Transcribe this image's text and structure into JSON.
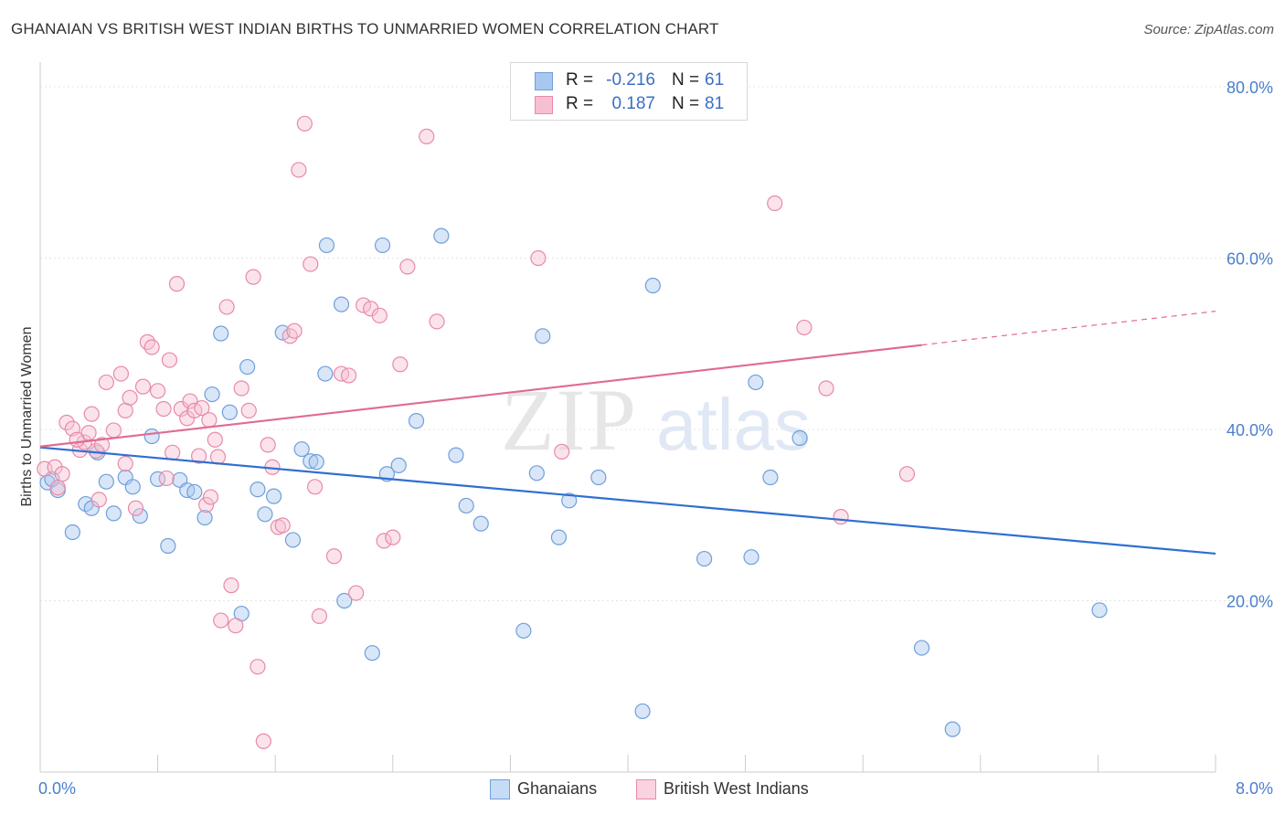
{
  "title": "GHANAIAN VS BRITISH WEST INDIAN BIRTHS TO UNMARRIED WOMEN CORRELATION CHART",
  "source": "Source: ZipAtlas.com",
  "watermark": {
    "zip": "ZIP",
    "atlas": "atlas"
  },
  "legend": {
    "rows": [
      {
        "r_label": "R =",
        "r_value": "-0.216",
        "n_label": "N =",
        "n_value": "61",
        "color": "#a9c8f0",
        "border": "#6f9fdc"
      },
      {
        "r_label": "R =",
        "r_value": "0.187",
        "n_label": "N =",
        "n_value": "81",
        "color": "#f7c0d2",
        "border": "#e88aa8"
      }
    ]
  },
  "bottom_legend": [
    {
      "label": "Ghanaians",
      "color": "#c6dbf6",
      "border": "#6f9fdc"
    },
    {
      "label": "British West Indians",
      "color": "#fbd3e0",
      "border": "#e88aa8"
    }
  ],
  "chart_data": {
    "type": "scatter",
    "title": "GHANAIAN VS BRITISH WEST INDIAN BIRTHS TO UNMARRIED WOMEN CORRELATION CHART",
    "xlabel": "",
    "ylabel": "Births to Unmarried Women",
    "xlim": [
      0,
      8
    ],
    "ylim": [
      0,
      80
    ],
    "x_tick_labels": [
      "0.0%",
      "8.0%"
    ],
    "y_ticks": [
      20,
      40,
      60,
      80
    ],
    "y_tick_labels": [
      "20.0%",
      "40.0%",
      "60.0%",
      "80.0%"
    ],
    "grid": true,
    "series": [
      {
        "name": "Ghanaians",
        "color": "#6f9fdc",
        "fill": "rgba(169,200,240,0.45)",
        "trend_color": "#2f6fd0",
        "trend": {
          "x0": 0.0,
          "y0": 37.9,
          "x1": 8.0,
          "y1": 25.5,
          "dashed_from": null
        },
        "points": [
          [
            0.05,
            33.8
          ],
          [
            0.12,
            32.9
          ],
          [
            0.22,
            28.0
          ],
          [
            0.31,
            31.3
          ],
          [
            0.35,
            30.8
          ],
          [
            0.39,
            37.3
          ],
          [
            0.45,
            33.9
          ],
          [
            0.5,
            30.2
          ],
          [
            0.58,
            34.4
          ],
          [
            0.63,
            33.3
          ],
          [
            0.68,
            29.9
          ],
          [
            0.76,
            39.2
          ],
          [
            0.8,
            34.2
          ],
          [
            0.87,
            26.4
          ],
          [
            0.95,
            34.1
          ],
          [
            1.0,
            32.9
          ],
          [
            1.05,
            32.7
          ],
          [
            1.12,
            29.7
          ],
          [
            1.17,
            44.1
          ],
          [
            1.23,
            51.2
          ],
          [
            1.29,
            42.0
          ],
          [
            1.37,
            18.5
          ],
          [
            1.41,
            47.3
          ],
          [
            1.48,
            33.0
          ],
          [
            1.53,
            30.1
          ],
          [
            1.59,
            32.2
          ],
          [
            1.65,
            51.3
          ],
          [
            1.72,
            27.1
          ],
          [
            1.78,
            37.7
          ],
          [
            1.84,
            36.3
          ],
          [
            1.88,
            36.2
          ],
          [
            1.94,
            46.5
          ],
          [
            1.95,
            61.5
          ],
          [
            2.05,
            54.6
          ],
          [
            2.07,
            20.0
          ],
          [
            2.26,
            13.9
          ],
          [
            2.33,
            61.5
          ],
          [
            2.36,
            34.8
          ],
          [
            2.44,
            35.8
          ],
          [
            2.56,
            41.0
          ],
          [
            2.73,
            62.6
          ],
          [
            2.83,
            37.0
          ],
          [
            2.9,
            31.1
          ],
          [
            3.0,
            29.0
          ],
          [
            3.29,
            16.5
          ],
          [
            3.38,
            34.9
          ],
          [
            3.42,
            50.9
          ],
          [
            3.53,
            27.4
          ],
          [
            3.6,
            31.7
          ],
          [
            3.8,
            34.4
          ],
          [
            4.1,
            7.1
          ],
          [
            4.17,
            56.8
          ],
          [
            4.52,
            24.9
          ],
          [
            4.84,
            25.1
          ],
          [
            4.87,
            45.5
          ],
          [
            4.97,
            34.4
          ],
          [
            5.17,
            39.0
          ],
          [
            6.0,
            14.5
          ],
          [
            6.21,
            5.0
          ],
          [
            7.21,
            18.9
          ],
          [
            0.08,
            34.2
          ]
        ]
      },
      {
        "name": "British West Indians",
        "color": "#e88aa8",
        "fill": "rgba(247,192,210,0.45)",
        "trend_color": "#e06a94",
        "trend": {
          "x0": 0.0,
          "y0": 38.0,
          "x1": 8.0,
          "y1": 53.8,
          "dashed_from": 6.0
        },
        "points": [
          [
            0.03,
            35.4
          ],
          [
            0.1,
            35.6
          ],
          [
            0.15,
            34.8
          ],
          [
            0.18,
            40.8
          ],
          [
            0.22,
            40.1
          ],
          [
            0.27,
            37.6
          ],
          [
            0.3,
            38.5
          ],
          [
            0.33,
            39.6
          ],
          [
            0.35,
            41.8
          ],
          [
            0.38,
            37.5
          ],
          [
            0.42,
            38.2
          ],
          [
            0.45,
            45.5
          ],
          [
            0.5,
            39.9
          ],
          [
            0.55,
            46.5
          ],
          [
            0.58,
            42.2
          ],
          [
            0.61,
            43.7
          ],
          [
            0.65,
            30.8
          ],
          [
            0.7,
            45.0
          ],
          [
            0.73,
            50.2
          ],
          [
            0.76,
            49.6
          ],
          [
            0.8,
            44.5
          ],
          [
            0.84,
            42.4
          ],
          [
            0.88,
            48.1
          ],
          [
            0.9,
            37.3
          ],
          [
            0.93,
            57.0
          ],
          [
            0.96,
            42.4
          ],
          [
            1.0,
            41.3
          ],
          [
            1.02,
            43.3
          ],
          [
            1.05,
            42.2
          ],
          [
            1.08,
            36.9
          ],
          [
            1.1,
            42.5
          ],
          [
            1.13,
            31.2
          ],
          [
            1.16,
            32.1
          ],
          [
            1.19,
            38.8
          ],
          [
            1.21,
            36.8
          ],
          [
            1.23,
            17.7
          ],
          [
            1.27,
            54.3
          ],
          [
            1.3,
            21.8
          ],
          [
            1.33,
            17.1
          ],
          [
            1.37,
            44.8
          ],
          [
            1.42,
            42.2
          ],
          [
            1.45,
            57.8
          ],
          [
            1.48,
            12.3
          ],
          [
            1.52,
            3.6
          ],
          [
            1.55,
            38.2
          ],
          [
            1.58,
            35.6
          ],
          [
            1.62,
            28.6
          ],
          [
            1.65,
            28.8
          ],
          [
            1.7,
            50.9
          ],
          [
            1.73,
            51.5
          ],
          [
            1.76,
            70.3
          ],
          [
            1.8,
            75.7
          ],
          [
            1.84,
            59.3
          ],
          [
            1.87,
            33.3
          ],
          [
            1.9,
            18.2
          ],
          [
            2.0,
            25.2
          ],
          [
            2.05,
            46.5
          ],
          [
            2.1,
            46.3
          ],
          [
            2.15,
            20.9
          ],
          [
            2.2,
            54.5
          ],
          [
            2.25,
            54.1
          ],
          [
            2.31,
            53.3
          ],
          [
            2.34,
            27.0
          ],
          [
            2.4,
            27.4
          ],
          [
            2.45,
            47.6
          ],
          [
            2.5,
            59.0
          ],
          [
            2.63,
            74.2
          ],
          [
            2.7,
            52.6
          ],
          [
            3.39,
            60.0
          ],
          [
            3.55,
            37.4
          ],
          [
            5.0,
            66.4
          ],
          [
            5.2,
            51.9
          ],
          [
            5.35,
            44.8
          ],
          [
            5.45,
            29.8
          ],
          [
            5.9,
            34.8
          ],
          [
            0.12,
            33.2
          ],
          [
            0.25,
            38.8
          ],
          [
            0.4,
            31.8
          ],
          [
            0.58,
            36.0
          ],
          [
            0.86,
            34.3
          ],
          [
            1.15,
            41.1
          ]
        ]
      }
    ]
  }
}
